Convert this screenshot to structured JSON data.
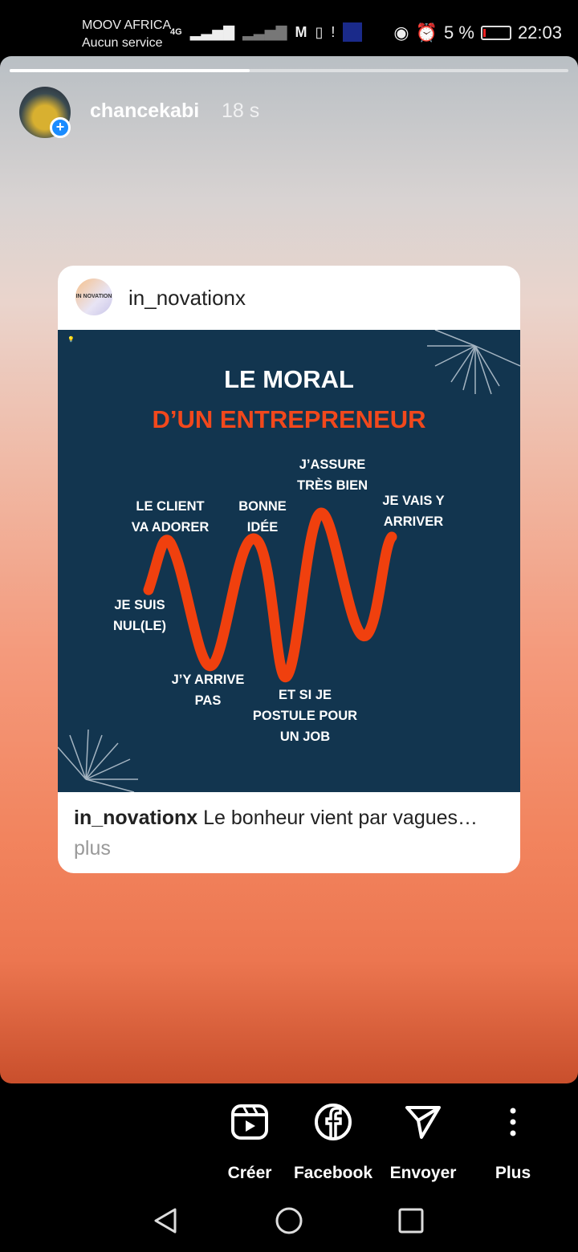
{
  "status_bar": {
    "carrier": "MOOV AFRICA",
    "service": "Aucun service",
    "network": "4G",
    "battery": "5 %",
    "time": "22:03"
  },
  "story": {
    "progress": 0.43,
    "username": "chancekabi",
    "age": "18 s"
  },
  "post": {
    "account": "in_novationx",
    "logo_text": "IN NOVATION",
    "title_line1": "LE MORAL",
    "title_line2": "D’UN ENTREPRENEUR",
    "labels": {
      "client": "LE CLIENT\nVA ADORER",
      "nul": "JE SUIS\nNUL(LE)",
      "arrive_pas": "J’Y ARRIVE\nPAS",
      "bonne": "BONNE\nIDÉE",
      "job": "ET SI JE\nPOSTULE POUR\nUN JOB",
      "assure": "J’ASSURE\nTRÈS BIEN",
      "vais": "JE VAIS Y\nARRIVER"
    },
    "caption_user": "in_novationx",
    "caption_text": " Le bonheur vient par vagues…",
    "more": "plus",
    "colors": {
      "poster_bg": "#12354f",
      "accent": "#f2481c"
    }
  },
  "actions": [
    {
      "label": "Créer",
      "icon": "reels-icon"
    },
    {
      "label": "Facebook",
      "icon": "facebook-icon"
    },
    {
      "label": "Envoyer",
      "icon": "send-icon"
    },
    {
      "label": "Plus",
      "icon": "more-icon"
    }
  ]
}
